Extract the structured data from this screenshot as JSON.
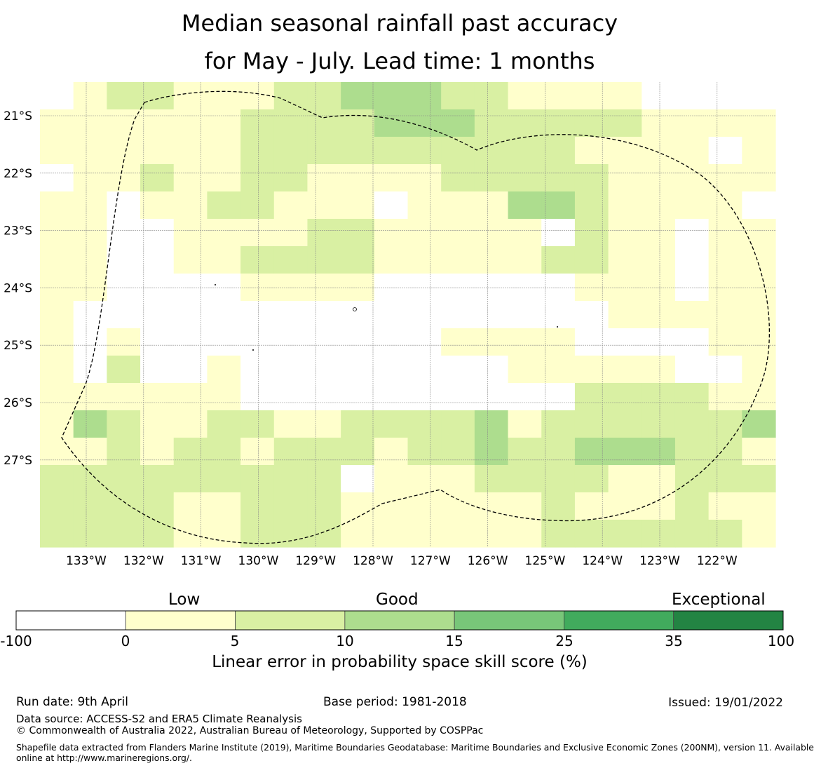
{
  "title_line1": "Median seasonal rainfall past accuracy",
  "title_line2": "for May - July. Lead time: 1 months",
  "map": {
    "lon_labels": [
      "133°W",
      "132°W",
      "131°W",
      "130°W",
      "129°W",
      "128°W",
      "127°W",
      "126°W",
      "125°W",
      "124°W",
      "123°W",
      "122°W"
    ],
    "lat_labels": [
      "21°S",
      "22°S",
      "23°S",
      "24°S",
      "25°S",
      "26°S",
      "27°S"
    ],
    "grid_rows": [
      "0122111223332211110000",
      "1111112222333222221111",
      "1111112222222222111101",
      "0112112211112222211111",
      "1101122111011133211110",
      "1100111122111110211011",
      "1100112222111112211011",
      "1100001111000000111011",
      "1000000000000000011111",
      "1010000000001111000011",
      "1020010000000011111001",
      "1111110000000000222211",
      "1321122112222312222223",
      "1121221222122322333221",
      "2222222220111222211222",
      "2222112221111112111211",
      "2222112221111112222221"
    ],
    "colors": [
      "#ffffff",
      "#ffffcc",
      "#d9f0a3",
      "#addd8e",
      "#78c679",
      "#41ab5d",
      "#238443"
    ]
  },
  "colorbar": {
    "words": [
      "Low",
      "Good",
      "Exceptional"
    ],
    "ticks": [
      "-100",
      "0",
      "5",
      "10",
      "15",
      "25",
      "35",
      "100"
    ],
    "label": "Linear error in probability space skill score (%)"
  },
  "footer": {
    "run_date": "Run date: 9th April",
    "base_period": "Base period: 1981-2018",
    "issued": "Issued: 19/01/2022",
    "data_source": "Data source: ACCESS-S2 and ERA5 Climate Reanalysis",
    "copyright": "© Commonwealth of Australia 2022, Australian Bureau of Meteorology, Supported by COSPPac",
    "shapefile_line1": "Shapefile data extracted from Flanders Marine Institute (2019), Maritime Boundaries Geodatabase: Maritime Boundaries and Exclusive Economic Zones (200NM), version 11. Available",
    "shapefile_line2": "online at http://www.marineregions.org/."
  }
}
